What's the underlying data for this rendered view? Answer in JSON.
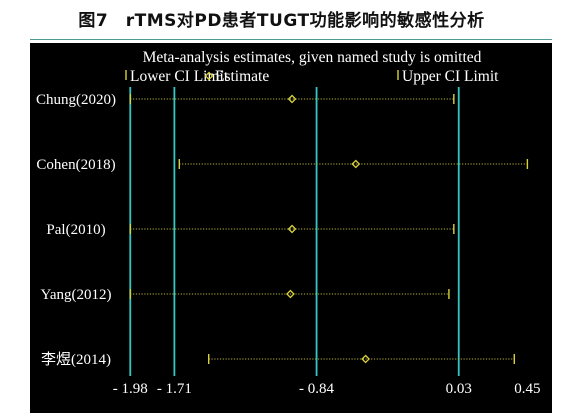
{
  "figure_title": "图7　rTMS对PD患者TUGT功能影响的敏感性分析",
  "colors": {
    "panel_bg": "#000000",
    "text": "#ffffff",
    "reference_lines": "#33c7c2",
    "dotted_ci": "#b9b63c",
    "estimate_marker": "#d8d23a",
    "ci_tick": "#d8d23a"
  },
  "chart_data": {
    "type": "scatter",
    "subtitle": "Meta-analysis estimates, given named study is omitted",
    "legend": {
      "placement": "top",
      "items": [
        {
          "symbol": "tick",
          "label": "Lower CI Limit"
        },
        {
          "symbol": "diamond",
          "label": "Estimate"
        },
        {
          "symbol": "tick",
          "label": "Upper CI Limit"
        }
      ]
    },
    "xlim": [
      -2.0,
      0.46
    ],
    "reference_lines": [
      -1.98,
      -1.71,
      -0.84,
      0.03
    ],
    "xticks": [
      {
        "value": -1.98,
        "label": "- 1.98"
      },
      {
        "value": -1.71,
        "label": "- 1.71"
      },
      {
        "value": -0.84,
        "label": "- 0.84"
      },
      {
        "value": 0.03,
        "label": "0.03"
      },
      {
        "value": 0.45,
        "label": "0.45"
      }
    ],
    "studies": [
      {
        "name": "Chung(2020)",
        "lower": -1.98,
        "estimate": -0.99,
        "upper": 0.0
      },
      {
        "name": "Cohen(2018)",
        "lower": -1.68,
        "estimate": -0.6,
        "upper": 0.45
      },
      {
        "name": "Pal(2010)",
        "lower": -1.98,
        "estimate": -0.99,
        "upper": 0.0
      },
      {
        "name": "Yang(2012)",
        "lower": -1.98,
        "estimate": -1.0,
        "upper": -0.03
      },
      {
        "name": "李煜(2014)",
        "lower": -1.5,
        "estimate": -0.54,
        "upper": 0.37
      }
    ]
  }
}
